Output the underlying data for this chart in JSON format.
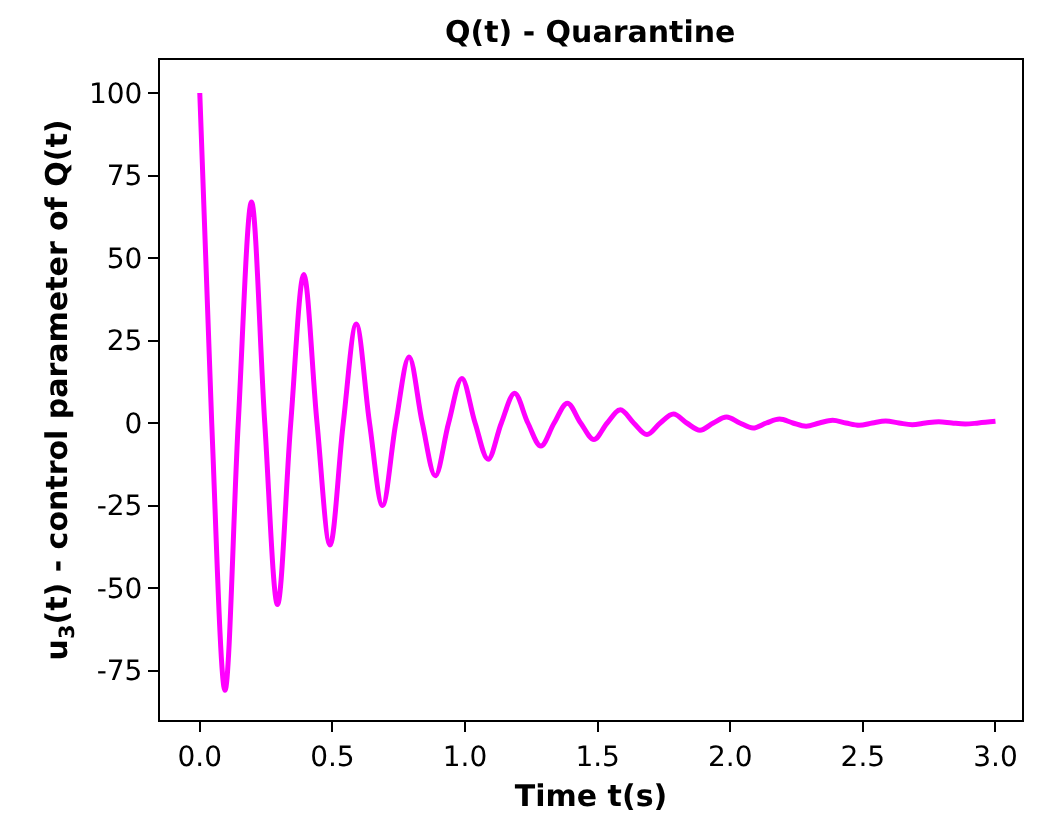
{
  "chart_data": {
    "type": "line",
    "title": "Q(t) - Quarantine",
    "xlabel": "Time t(s)",
    "ylabel": "u$_{3}$(t) - control parameter of Q(t)",
    "xlim": [
      -0.15,
      3.1
    ],
    "xticks": [
      {
        "value": 0,
        "label": "0.0"
      },
      {
        "value": 0.5,
        "label": "0.5"
      },
      {
        "value": 1,
        "label": "1.0"
      },
      {
        "value": 1.5,
        "label": "1.5"
      },
      {
        "value": 2,
        "label": "2.0"
      },
      {
        "value": 2.5,
        "label": "2.5"
      },
      {
        "value": 3,
        "label": "3.0"
      }
    ],
    "ylim": [
      -90,
      110
    ],
    "yticks": [
      -75,
      -50,
      -25,
      0,
      25,
      50,
      75,
      100
    ],
    "grid": false,
    "marker": "none",
    "line_style": "solid",
    "x": [
      0,
      0.045,
      0.095,
      0.145,
      0.195,
      0.245,
      0.293,
      0.343,
      0.392,
      0.442,
      0.491,
      0.541,
      0.59,
      0.64,
      0.689,
      0.739,
      0.789,
      0.839,
      0.888,
      0.938,
      0.988,
      1.038,
      1.087,
      1.137,
      1.187,
      1.237,
      1.286,
      1.336,
      1.386,
      1.436,
      1.486,
      1.536,
      1.586,
      1.636,
      1.686,
      1.736,
      1.786,
      1.836,
      1.886,
      1.936,
      1.986,
      2.036,
      2.086,
      2.136,
      2.186,
      2.236,
      2.286,
      2.336,
      2.386,
      2.436,
      2.486,
      2.536,
      2.586,
      2.636,
      2.686,
      2.736,
      2.786,
      2.836,
      2.886,
      2.936,
      3.0
    ],
    "series": [
      {
        "color": "#ff00ff",
        "values": [
          100,
          0,
          -81,
          0,
          67,
          0,
          -55,
          0,
          45,
          0,
          -37,
          0,
          30,
          0,
          -25,
          0,
          20,
          0,
          -16,
          0,
          13.5,
          0,
          -11,
          0,
          9,
          0,
          -7,
          0,
          6,
          0,
          -5,
          0,
          4,
          0,
          -3.5,
          0,
          2.7,
          0,
          -2.2,
          0,
          1.8,
          0,
          -1.5,
          0,
          1.2,
          0,
          -1,
          0,
          0.8,
          0,
          -0.7,
          0,
          0.6,
          0,
          -0.5,
          0,
          0.4,
          0,
          -0.3,
          0,
          0.5
        ]
      }
    ]
  }
}
